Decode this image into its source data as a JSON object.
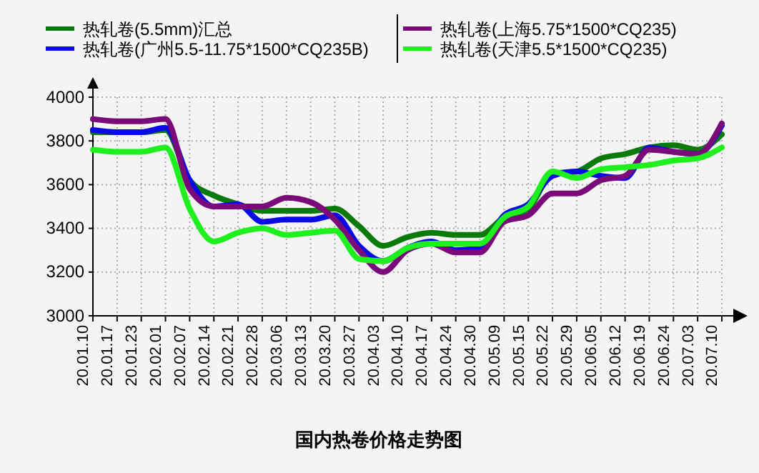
{
  "chart_data": {
    "type": "line",
    "title": "国内热卷价格走势图",
    "categories": [
      "20.01.10",
      "20.01.17",
      "20.01.23",
      "20.02.01",
      "20.02.07",
      "20.02.14",
      "20.02.21",
      "20.02.28",
      "20.03.06",
      "20.03.13",
      "20.03.20",
      "20.03.27",
      "20.04.03",
      "20.04.10",
      "20.04.17",
      "20.04.24",
      "20.04.30",
      "20.05.09",
      "20.05.15",
      "20.05.22",
      "20.05.29",
      "20.06.05",
      "20.06.12",
      "20.06.19",
      "20.06.24",
      "20.07.03",
      "20.07.10"
    ],
    "series": [
      {
        "name": "热轧卷(5.5mm)汇总",
        "color": "#0a7a0a",
        "values": [
          3840,
          3840,
          3840,
          3850,
          3620,
          3550,
          3510,
          3480,
          3480,
          3480,
          3490,
          3410,
          3320,
          3360,
          3380,
          3370,
          3370,
          3450,
          3490,
          3650,
          3660,
          3720,
          3740,
          3770,
          3780,
          3760,
          3830
        ]
      },
      {
        "name": "热轧卷(广州5.5-11.75*1500*CQ235B)",
        "color": "#0a0ae6",
        "values": [
          3850,
          3840,
          3840,
          3860,
          3620,
          3500,
          3510,
          3430,
          3440,
          3440,
          3460,
          3320,
          3250,
          3310,
          3340,
          3300,
          3310,
          3460,
          3510,
          3640,
          3660,
          3640,
          3630,
          3770,
          3750,
          3740,
          3870
        ]
      },
      {
        "name": "热轧卷(上海5.75*1500*CQ235)",
        "color": "#7a0a7a",
        "values": [
          3900,
          3890,
          3890,
          3900,
          3580,
          3500,
          3500,
          3500,
          3540,
          3520,
          3440,
          3300,
          3200,
          3300,
          3330,
          3290,
          3290,
          3430,
          3460,
          3560,
          3560,
          3620,
          3640,
          3760,
          3750,
          3740,
          3880
        ]
      },
      {
        "name": "热轧卷(天津5.5*1500*CQ235)",
        "color": "#1ef01e",
        "values": [
          3760,
          3750,
          3750,
          3770,
          3490,
          3340,
          3380,
          3400,
          3370,
          3380,
          3390,
          3260,
          3250,
          3310,
          3330,
          3330,
          3330,
          3450,
          3500,
          3660,
          3630,
          3670,
          3680,
          3690,
          3710,
          3720,
          3770
        ]
      }
    ],
    "ylim": [
      3000,
      4000
    ],
    "yticks": [
      3000,
      3200,
      3400,
      3600,
      3800,
      4000
    ],
    "grid": true,
    "legend": "top",
    "marker": "none",
    "line_style": "solid"
  }
}
